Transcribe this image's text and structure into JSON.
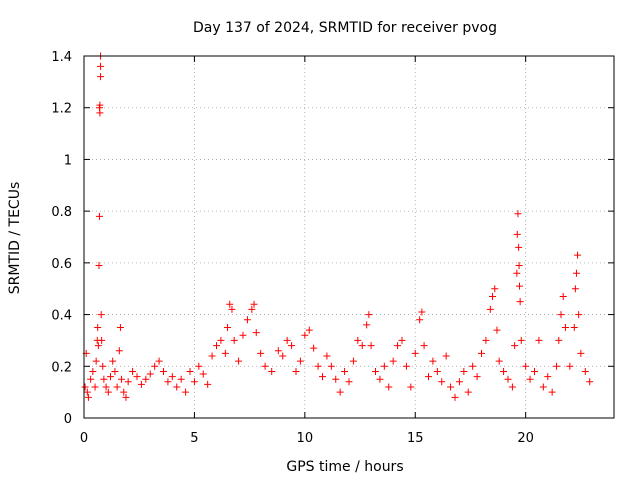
{
  "chart_data": {
    "type": "scatter",
    "title": "Day 137 of 2024, SRMTID for receiver pvog",
    "xlabel": "GPS time / hours",
    "ylabel": "SRMTID / TECUs",
    "xlim": [
      0,
      24
    ],
    "ylim": [
      0,
      1.4
    ],
    "xticks": [
      0,
      5,
      10,
      15,
      20
    ],
    "yticks": [
      0,
      0.2,
      0.4,
      0.6,
      0.8,
      1,
      1.2,
      1.4
    ],
    "xtick_labels": [
      "0",
      "5",
      "10",
      "15",
      "20"
    ],
    "ytick_labels": [
      "0",
      "0.2",
      "0.4",
      "0.6",
      "0.8",
      "1",
      "1.2",
      "1.4"
    ],
    "grid": true,
    "marker": "+",
    "color": "#ff0000",
    "series": [
      {
        "name": "SRMTID",
        "points": [
          [
            0.05,
            0.12
          ],
          [
            0.1,
            0.25
          ],
          [
            0.15,
            0.1
          ],
          [
            0.2,
            0.08
          ],
          [
            0.3,
            0.15
          ],
          [
            0.4,
            0.18
          ],
          [
            0.5,
            0.12
          ],
          [
            0.55,
            0.22
          ],
          [
            0.6,
            0.3
          ],
          [
            0.62,
            0.35
          ],
          [
            0.65,
            0.28
          ],
          [
            0.68,
            0.59
          ],
          [
            0.7,
            0.78
          ],
          [
            0.7,
            1.2
          ],
          [
            0.72,
            1.18
          ],
          [
            0.72,
            1.21
          ],
          [
            0.75,
            1.32
          ],
          [
            0.75,
            1.36
          ],
          [
            0.75,
            1.4
          ],
          [
            0.78,
            0.4
          ],
          [
            0.8,
            0.3
          ],
          [
            0.85,
            0.2
          ],
          [
            0.9,
            0.15
          ],
          [
            1.0,
            0.12
          ],
          [
            1.1,
            0.1
          ],
          [
            1.2,
            0.16
          ],
          [
            1.3,
            0.22
          ],
          [
            1.4,
            0.18
          ],
          [
            1.5,
            0.12
          ],
          [
            1.6,
            0.26
          ],
          [
            1.65,
            0.35
          ],
          [
            1.7,
            0.15
          ],
          [
            1.8,
            0.1
          ],
          [
            1.9,
            0.08
          ],
          [
            2.0,
            0.14
          ],
          [
            2.2,
            0.18
          ],
          [
            2.4,
            0.16
          ],
          [
            2.6,
            0.13
          ],
          [
            2.8,
            0.15
          ],
          [
            3.0,
            0.17
          ],
          [
            3.2,
            0.2
          ],
          [
            3.4,
            0.22
          ],
          [
            3.6,
            0.18
          ],
          [
            3.8,
            0.14
          ],
          [
            4.0,
            0.16
          ],
          [
            4.2,
            0.12
          ],
          [
            4.4,
            0.15
          ],
          [
            4.6,
            0.1
          ],
          [
            4.8,
            0.18
          ],
          [
            5.0,
            0.14
          ],
          [
            5.2,
            0.2
          ],
          [
            5.4,
            0.17
          ],
          [
            5.6,
            0.13
          ],
          [
            5.8,
            0.24
          ],
          [
            6.0,
            0.28
          ],
          [
            6.2,
            0.3
          ],
          [
            6.4,
            0.25
          ],
          [
            6.5,
            0.35
          ],
          [
            6.6,
            0.44
          ],
          [
            6.7,
            0.42
          ],
          [
            6.8,
            0.3
          ],
          [
            7.0,
            0.22
          ],
          [
            7.2,
            0.32
          ],
          [
            7.4,
            0.38
          ],
          [
            7.6,
            0.42
          ],
          [
            7.7,
            0.44
          ],
          [
            7.8,
            0.33
          ],
          [
            8.0,
            0.25
          ],
          [
            8.2,
            0.2
          ],
          [
            8.5,
            0.18
          ],
          [
            8.8,
            0.26
          ],
          [
            9.0,
            0.24
          ],
          [
            9.2,
            0.3
          ],
          [
            9.4,
            0.28
          ],
          [
            9.6,
            0.18
          ],
          [
            9.8,
            0.22
          ],
          [
            10.0,
            0.32
          ],
          [
            10.2,
            0.34
          ],
          [
            10.4,
            0.27
          ],
          [
            10.6,
            0.2
          ],
          [
            10.8,
            0.16
          ],
          [
            11.0,
            0.24
          ],
          [
            11.2,
            0.2
          ],
          [
            11.4,
            0.15
          ],
          [
            11.6,
            0.1
          ],
          [
            11.8,
            0.18
          ],
          [
            12.0,
            0.14
          ],
          [
            12.2,
            0.22
          ],
          [
            12.4,
            0.3
          ],
          [
            12.6,
            0.28
          ],
          [
            12.8,
            0.36
          ],
          [
            12.9,
            0.4
          ],
          [
            13.0,
            0.28
          ],
          [
            13.2,
            0.18
          ],
          [
            13.4,
            0.15
          ],
          [
            13.6,
            0.2
          ],
          [
            13.8,
            0.12
          ],
          [
            14.0,
            0.22
          ],
          [
            14.2,
            0.28
          ],
          [
            14.4,
            0.3
          ],
          [
            14.6,
            0.2
          ],
          [
            14.8,
            0.12
          ],
          [
            15.0,
            0.25
          ],
          [
            15.2,
            0.38
          ],
          [
            15.3,
            0.41
          ],
          [
            15.4,
            0.28
          ],
          [
            15.6,
            0.16
          ],
          [
            15.8,
            0.22
          ],
          [
            16.0,
            0.18
          ],
          [
            16.2,
            0.14
          ],
          [
            16.4,
            0.24
          ],
          [
            16.6,
            0.12
          ],
          [
            16.8,
            0.08
          ],
          [
            17.0,
            0.14
          ],
          [
            17.2,
            0.18
          ],
          [
            17.4,
            0.1
          ],
          [
            17.6,
            0.2
          ],
          [
            17.8,
            0.16
          ],
          [
            18.0,
            0.25
          ],
          [
            18.2,
            0.3
          ],
          [
            18.4,
            0.42
          ],
          [
            18.5,
            0.47
          ],
          [
            18.6,
            0.5
          ],
          [
            18.7,
            0.34
          ],
          [
            18.8,
            0.22
          ],
          [
            19.0,
            0.18
          ],
          [
            19.2,
            0.15
          ],
          [
            19.4,
            0.12
          ],
          [
            19.5,
            0.28
          ],
          [
            19.6,
            0.56
          ],
          [
            19.62,
            0.71
          ],
          [
            19.65,
            0.79
          ],
          [
            19.68,
            0.66
          ],
          [
            19.7,
            0.59
          ],
          [
            19.72,
            0.51
          ],
          [
            19.75,
            0.45
          ],
          [
            19.8,
            0.3
          ],
          [
            20.0,
            0.2
          ],
          [
            20.2,
            0.15
          ],
          [
            20.4,
            0.18
          ],
          [
            20.6,
            0.3
          ],
          [
            20.8,
            0.12
          ],
          [
            21.0,
            0.16
          ],
          [
            21.2,
            0.1
          ],
          [
            21.4,
            0.2
          ],
          [
            21.5,
            0.3
          ],
          [
            21.6,
            0.4
          ],
          [
            21.7,
            0.47
          ],
          [
            21.8,
            0.35
          ],
          [
            22.0,
            0.2
          ],
          [
            22.2,
            0.35
          ],
          [
            22.25,
            0.5
          ],
          [
            22.3,
            0.56
          ],
          [
            22.35,
            0.63
          ],
          [
            22.4,
            0.4
          ],
          [
            22.5,
            0.25
          ],
          [
            22.7,
            0.18
          ],
          [
            22.9,
            0.14
          ]
        ]
      }
    ]
  }
}
